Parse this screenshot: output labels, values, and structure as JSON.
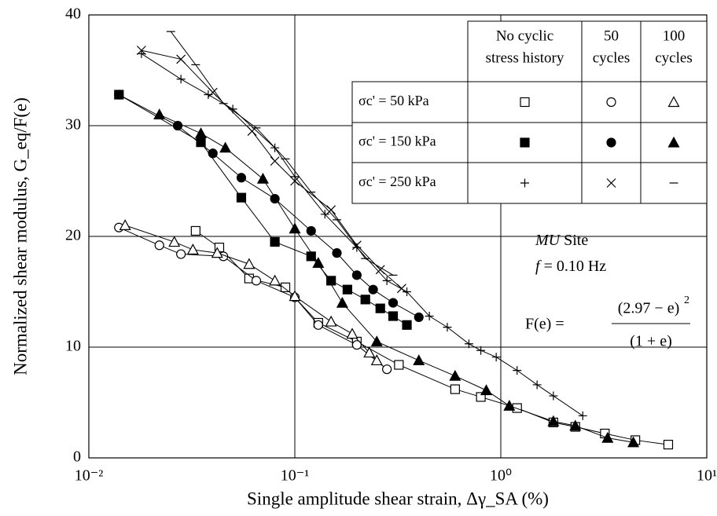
{
  "chart_data": {
    "type": "scatter",
    "xlabel": "Single amplitude shear strain, Δγ_SA (%)",
    "ylabel": "Normalized shear modulus, G_eq/F(e)",
    "xscale": "log",
    "xlim": [
      0.01,
      10
    ],
    "ylim": [
      0,
      40
    ],
    "xticks": [
      {
        "value": 0.01,
        "label": "10⁻²"
      },
      {
        "value": 0.1,
        "label": "10⁻¹"
      },
      {
        "value": 1,
        "label": "10⁰"
      },
      {
        "value": 10,
        "label": "10¹"
      }
    ],
    "yticks": [
      0,
      10,
      20,
      30,
      40
    ],
    "grid": true,
    "columns": [
      [
        "No cyclic",
        "stress history"
      ],
      [
        "50",
        "cycles"
      ],
      [
        "100",
        "cycles"
      ]
    ],
    "rows": [
      {
        "label": "σc' = 50 kPa",
        "series": [
          {
            "marker": "square",
            "filled": false,
            "color": "#000000",
            "x": [
              0.033,
              0.043,
              0.06,
              0.09,
              0.13,
              0.2,
              0.32,
              0.6,
              0.8,
              1.2,
              1.8,
              2.3,
              3.2,
              4.5,
              6.5
            ],
            "values": [
              20.5,
              19.0,
              16.2,
              15.4,
              12.2,
              10.5,
              8.4,
              6.2,
              5.5,
              4.5,
              3.2,
              2.8,
              2.2,
              1.6,
              1.2
            ]
          },
          {
            "marker": "circle",
            "filled": false,
            "color": "#000000",
            "x": [
              0.014,
              0.022,
              0.028,
              0.045,
              0.065,
              0.1,
              0.13,
              0.2,
              0.28
            ],
            "values": [
              20.8,
              19.2,
              18.4,
              18.2,
              16.0,
              14.5,
              12.0,
              10.2,
              8.0
            ]
          },
          {
            "marker": "triangle",
            "filled": false,
            "color": "#000000",
            "x": [
              0.015,
              0.026,
              0.032,
              0.042,
              0.06,
              0.08,
              0.1,
              0.15,
              0.19,
              0.23,
              0.25
            ],
            "values": [
              21.0,
              19.5,
              18.8,
              18.5,
              17.5,
              16.0,
              14.6,
              12.3,
              11.2,
              9.5,
              8.8
            ]
          }
        ]
      },
      {
        "label": "σc' = 150 kPa",
        "series": [
          {
            "marker": "square",
            "filled": true,
            "color": "#000000",
            "x": [
              0.014,
              0.035,
              0.055,
              0.08,
              0.12,
              0.15,
              0.18,
              0.22,
              0.26,
              0.3,
              0.35
            ],
            "values": [
              32.8,
              28.5,
              23.5,
              19.5,
              18.2,
              16.0,
              15.2,
              14.3,
              13.5,
              12.8,
              12.0
            ]
          },
          {
            "marker": "circle",
            "filled": true,
            "color": "#000000",
            "x": [
              0.014,
              0.027,
              0.04,
              0.055,
              0.08,
              0.12,
              0.16,
              0.2,
              0.24,
              0.3,
              0.4
            ],
            "values": [
              32.8,
              30.0,
              27.5,
              25.3,
              23.4,
              20.5,
              18.5,
              16.5,
              15.2,
              14.0,
              12.7
            ]
          },
          {
            "marker": "triangle",
            "filled": true,
            "color": "#000000",
            "x": [
              0.022,
              0.035,
              0.046,
              0.07,
              0.1,
              0.13,
              0.17,
              0.25,
              0.4,
              0.6,
              0.85,
              1.1,
              1.8,
              2.3,
              3.3,
              4.4
            ],
            "values": [
              31.0,
              29.3,
              28.0,
              25.2,
              20.7,
              17.6,
              14.0,
              10.5,
              8.8,
              7.4,
              6.1,
              4.7,
              3.3,
              2.9,
              1.8,
              1.4
            ]
          }
        ]
      },
      {
        "label": "σc' = 250 kPa",
        "series": [
          {
            "marker": "plus",
            "filled": false,
            "color": "#000000",
            "x": [
              0.018,
              0.028,
              0.038,
              0.05,
              0.08,
              0.1,
              0.14,
              0.2,
              0.28,
              0.35,
              0.45,
              0.55,
              0.7,
              0.8,
              0.95,
              1.2,
              1.5,
              1.8,
              2.5
            ],
            "values": [
              36.5,
              34.2,
              32.8,
              31.5,
              28.0,
              25.4,
              22.0,
              19.0,
              16.0,
              15.0,
              12.8,
              11.8,
              10.3,
              9.7,
              9.1,
              7.9,
              6.6,
              5.6,
              3.8
            ]
          },
          {
            "marker": "cross",
            "filled": false,
            "color": "#000000",
            "x": [
              0.018,
              0.028,
              0.04,
              0.062,
              0.08,
              0.1,
              0.15,
              0.2,
              0.26,
              0.33
            ],
            "values": [
              36.8,
              36.0,
              33.0,
              29.5,
              26.8,
              25.0,
              22.4,
              19.2,
              17.0,
              15.3
            ]
          },
          {
            "marker": "dash",
            "filled": false,
            "color": "#000000",
            "x": [
              0.025,
              0.033,
              0.045,
              0.065,
              0.09,
              0.12,
              0.16,
              0.22,
              0.3
            ],
            "values": [
              38.5,
              35.5,
              32.0,
              29.8,
              27.0,
              24.0,
              21.5,
              18.0,
              16.5
            ]
          }
        ]
      }
    ],
    "annotations": {
      "site_name": "MU",
      "site_label": "Site",
      "frequency_symbol": "f",
      "frequency": "= 0.10 Hz",
      "formula_lhs": "F(e) =",
      "formula_numerator": "(2.97 − e)",
      "formula_exponent": "2",
      "formula_denominator": "(1 + e)"
    }
  }
}
